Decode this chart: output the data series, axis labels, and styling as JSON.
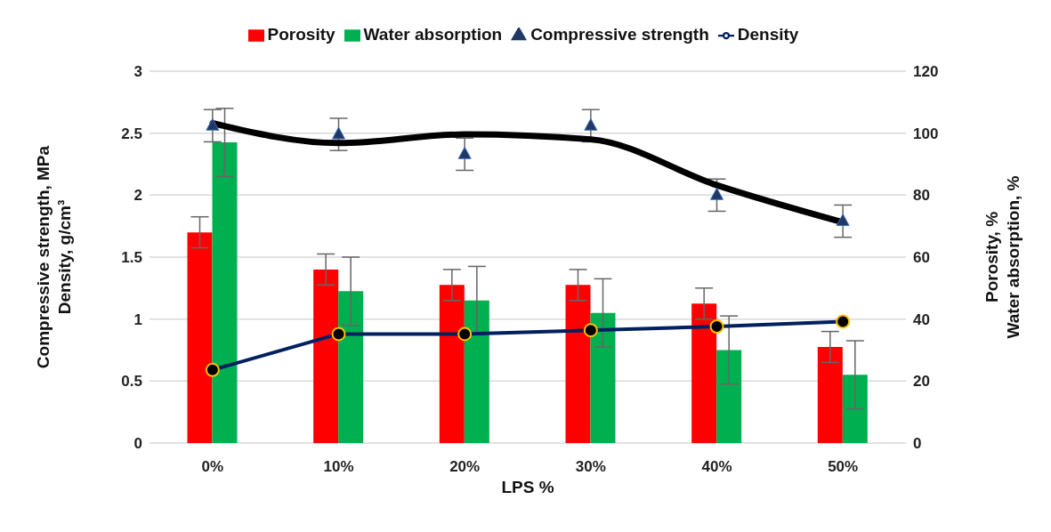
{
  "chart_data": {
    "type": "bar",
    "xlabel": "LPS %",
    "ylabel": "Compressive strength, MPa\nDensity, g/cm³",
    "y2label": "Porosity, %\nWater absorption, %",
    "categories": [
      "0%",
      "10%",
      "20%",
      "30%",
      "40%",
      "50%"
    ],
    "series": [
      {
        "name": "Porosity",
        "axis": "y2",
        "color": "#ff0000",
        "values": [
          68,
          56,
          51,
          51,
          45,
          31
        ],
        "errors": [
          5,
          5,
          5,
          5,
          5,
          5
        ]
      },
      {
        "name": "Water absorption",
        "axis": "y2",
        "color": "#00b050",
        "values": [
          97,
          49,
          46,
          42,
          30,
          22
        ],
        "errors": [
          11,
          11,
          11,
          11,
          11,
          11
        ]
      },
      {
        "name": "Compressive strength",
        "type": "scatter",
        "marker": "triangle",
        "color": "#1f3864",
        "values": [
          2.56,
          2.49,
          2.33,
          2.56,
          2.0,
          1.79
        ],
        "errors": [
          0.13,
          0.13,
          0.13,
          0.13,
          0.13,
          0.13
        ]
      },
      {
        "type": "line",
        "marker": "none",
        "color": "#000000",
        "values": [
          2.58,
          2.42,
          2.49,
          2.45,
          2.08,
          1.78
        ]
      },
      {
        "name": "Density",
        "type": "line",
        "marker": "circle",
        "color": "#002060",
        "values": [
          0.59,
          0.88,
          0.88,
          0.91,
          0.94,
          0.98
        ]
      }
    ],
    "ylim": [
      0,
      3
    ],
    "yticks": [
      0,
      0.5,
      1,
      1.5,
      2,
      2.5,
      3
    ],
    "y2lim": [
      0,
      120
    ],
    "y2ticks": [
      0,
      20,
      40,
      60,
      80,
      100,
      120
    ],
    "grid": "y",
    "legend": "top",
    "line_style": "solid"
  }
}
